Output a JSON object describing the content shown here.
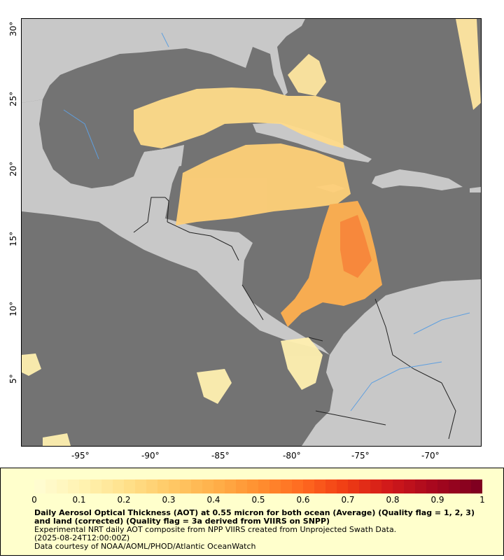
{
  "map": {
    "lon_labels": [
      "-95°",
      "-90°",
      "-85°",
      "-80°",
      "-75°",
      "-70°"
    ],
    "lat_labels": [
      "30°",
      "25°",
      "20°",
      "15°",
      "10°",
      "5°"
    ],
    "colors": {
      "ocean": "#737373",
      "land": "#c8c8c8",
      "border": "#222222",
      "river": "#5f9fdf"
    }
  },
  "legend": {
    "ticks": [
      "0",
      "0.1",
      "0.2",
      "0.3",
      "0.4",
      "0.5",
      "0.6",
      "0.7",
      "0.8",
      "0.9",
      "1"
    ],
    "colors": [
      "#fffcd0",
      "#fff2b0",
      "#ffe08a",
      "#ffc966",
      "#ffb04a",
      "#ff9030",
      "#ff6a20",
      "#f03c14",
      "#d0181a",
      "#a8081e",
      "#800020"
    ]
  },
  "caption": {
    "title": "Daily Aerosol Optical Thickness (AOT) at 0.55 micron for both ocean (Average) (Quality flag = 1, 2, 3) and land (corrected) (Quality flag = 3a derived from VIIRS on SNPP)",
    "line1": "Experimental NRT daily AOT composite from NPP VIIRS created from Unprojected Swath Data.",
    "line2": "(2025-08-24T12:00:00Z)",
    "line3": "Data courtesy of NOAA/AOML/PHOD/Atlantic OceanWatch"
  }
}
